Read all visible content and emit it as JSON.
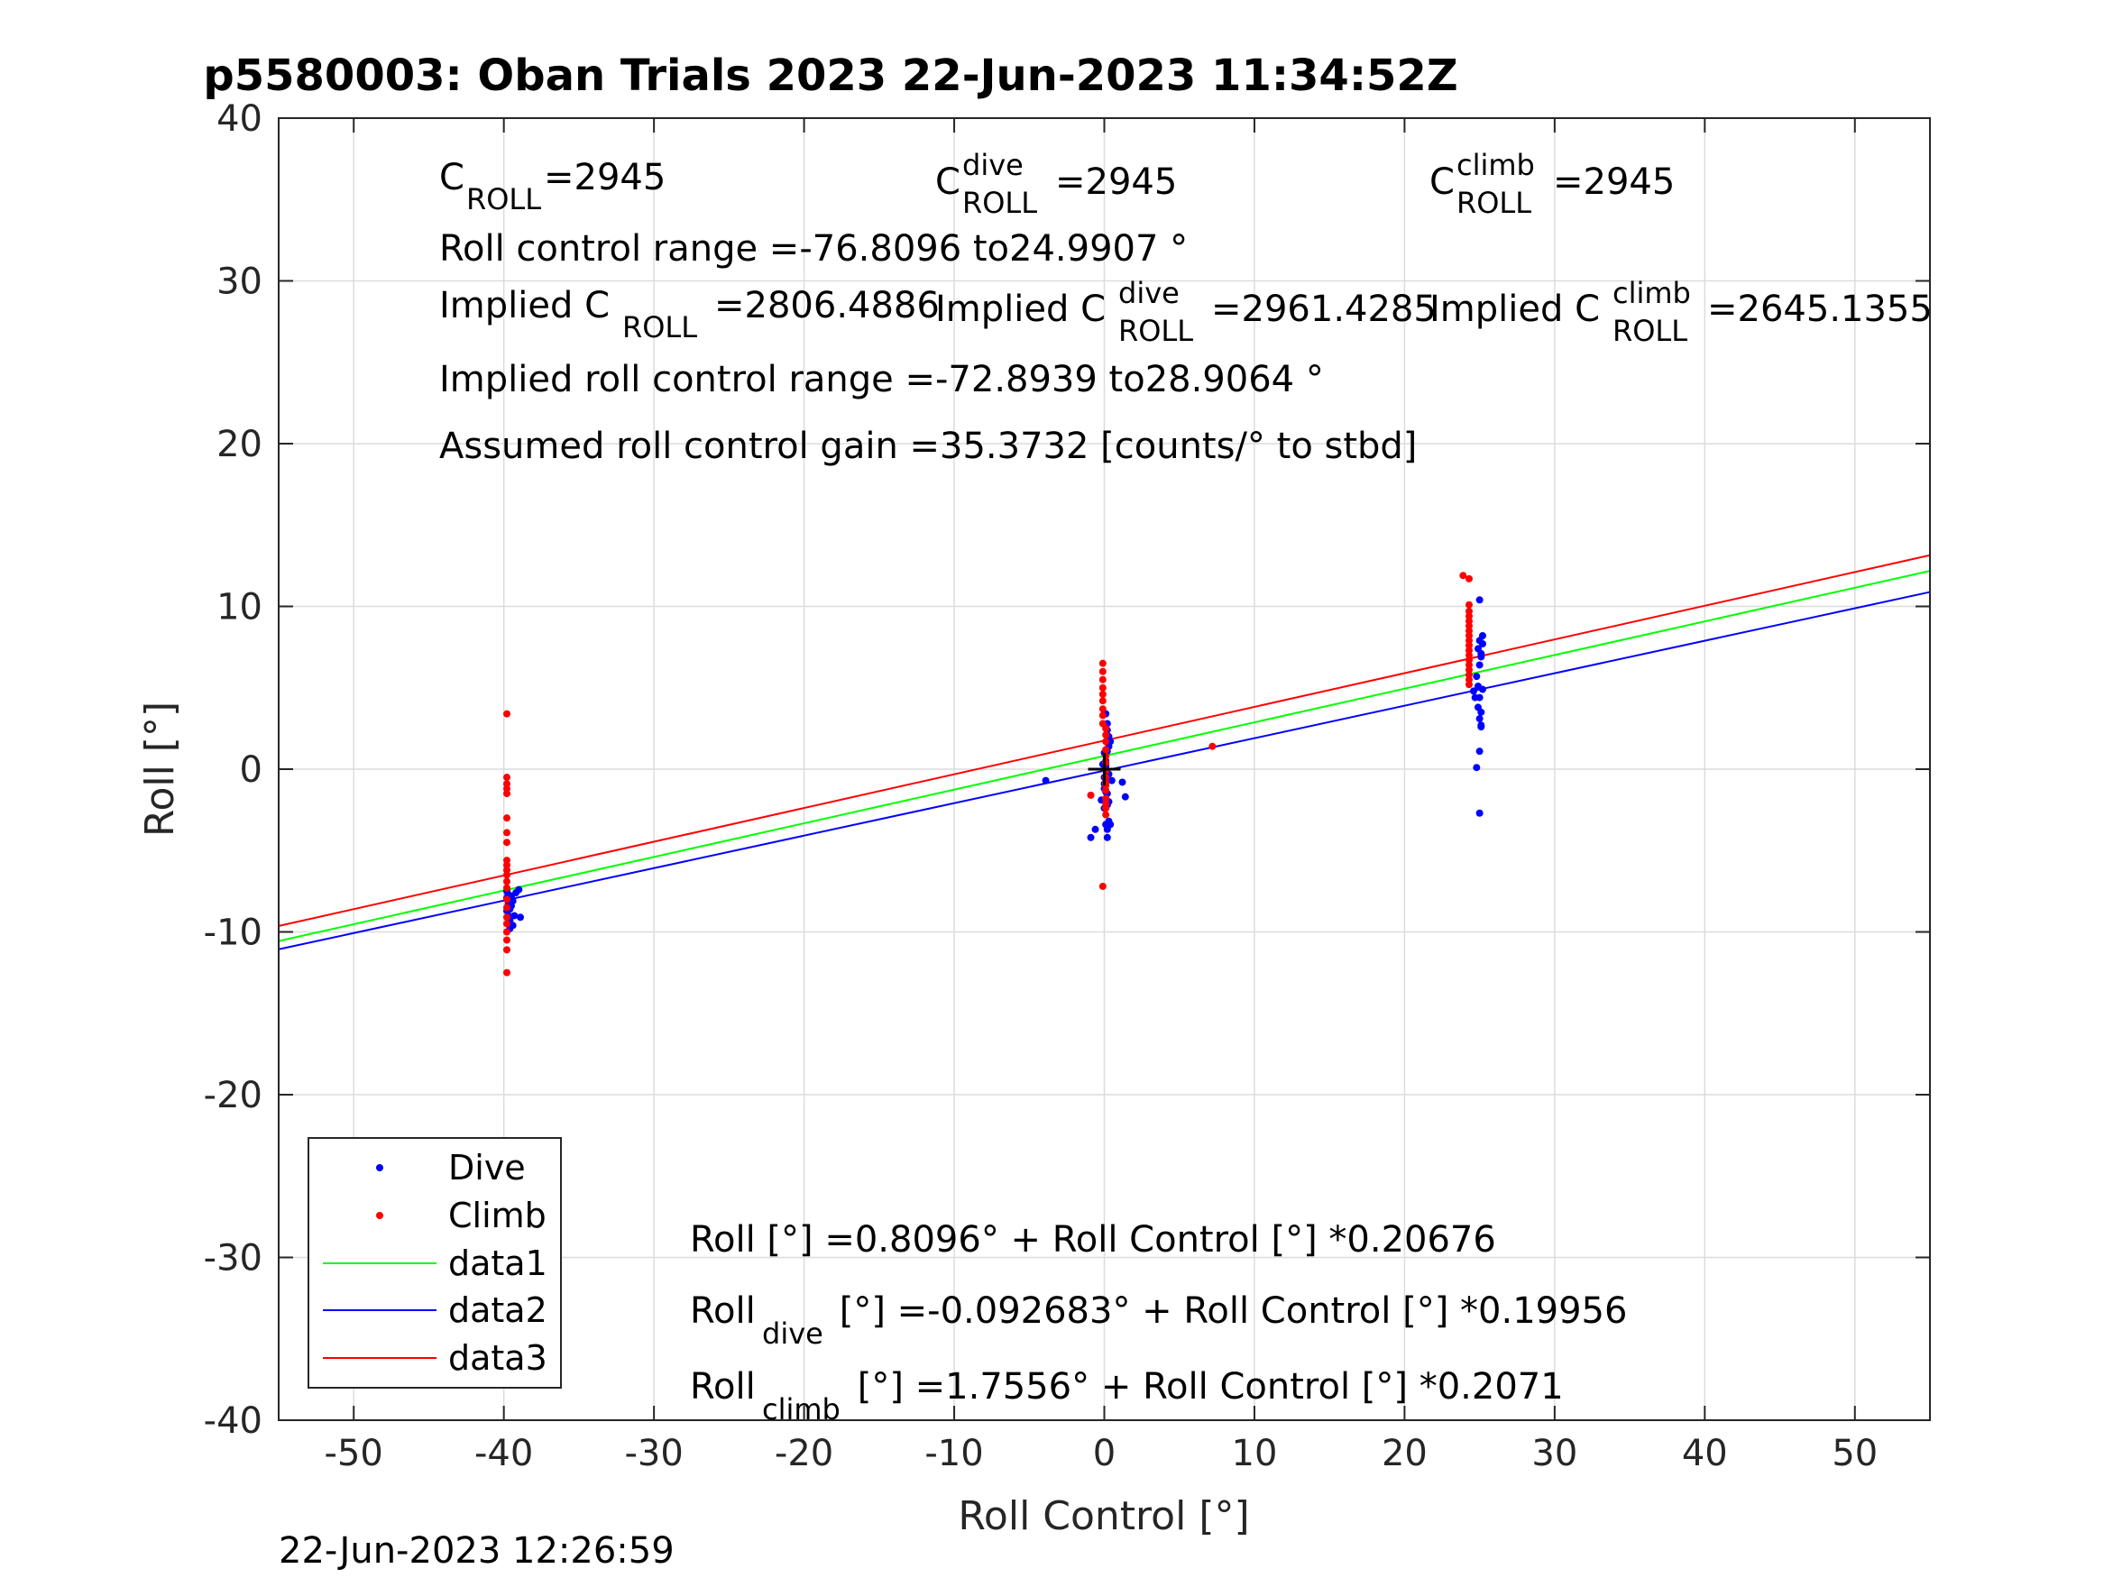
{
  "chart_data": {
    "type": "scatter",
    "title": "p5580003: Oban Trials 2023 22-Jun-2023 11:34:52Z",
    "xlabel": "Roll Control [°]",
    "ylabel": "Roll [°]",
    "xlim": [
      -55,
      55
    ],
    "ylim": [
      -40,
      40
    ],
    "xticks": [
      -50,
      -40,
      -30,
      -20,
      -10,
      0,
      10,
      20,
      30,
      40,
      50
    ],
    "yticks": [
      -40,
      -30,
      -20,
      -10,
      0,
      10,
      20,
      30,
      40
    ],
    "grid": true,
    "legend_location": "bottom-left",
    "timestamp": "22-Jun-2023 12:26:59",
    "colors": {
      "dive": "#0000ff",
      "climb": "#ff0000",
      "data1": "#00ff00",
      "data2": "#0000ff",
      "data3": "#ff0000"
    },
    "series": [
      {
        "name": "Dive",
        "kind": "points",
        "color": "#0000ff",
        "x": [
          -39.8,
          -39.8,
          -39.7,
          -39.6,
          -39.5,
          -39.7,
          -39.6,
          -39.4,
          -39.3,
          -39.8,
          -39.5,
          -39.2,
          -39.0,
          -38.9,
          -39.6,
          -39.4,
          -39.7,
          -39.5,
          -3.9,
          -0.6,
          -0.9,
          0.1,
          0.3,
          0.2,
          -0.1,
          0.0,
          0.4,
          0.2,
          0.1,
          0.3,
          0.5,
          0.0,
          -0.2,
          0.2,
          0.3,
          0.1,
          0.2,
          0.0,
          0.1,
          0.4,
          0.2,
          0.3,
          0.2,
          0.0,
          1.2,
          1.4,
          0.1,
          0.2,
          0.3,
          0.0,
          24.6,
          24.8,
          25.0,
          25.1,
          25.2,
          24.9,
          25.0,
          25.1,
          24.7,
          25.0,
          25.2,
          24.9,
          25.1,
          25.0,
          24.8,
          25.0,
          25.1,
          24.9,
          25.2,
          25.0,
          25.1,
          25.0
        ],
        "y": [
          -7.5,
          -7.9,
          -8.3,
          -8.6,
          -8.0,
          -9.0,
          -9.3,
          -9.6,
          -9.0,
          -8.7,
          -7.8,
          -7.6,
          -7.4,
          -9.1,
          -9.8,
          -8.1,
          -7.7,
          -8.4,
          -0.7,
          -3.7,
          -4.2,
          -3.4,
          -3.2,
          -4.2,
          0.3,
          1.0,
          1.7,
          2.4,
          3.4,
          2.0,
          -0.7,
          -1.2,
          -1.9,
          -2.2,
          -0.3,
          0.2,
          2.8,
          -0.9,
          -1.4,
          -3.4,
          -3.7,
          -2.0,
          -1.5,
          -0.5,
          -0.8,
          -1.7,
          0.5,
          1.1,
          1.4,
          -2.4,
          4.8,
          5.7,
          6.4,
          7.1,
          8.2,
          3.8,
          3.1,
          2.6,
          4.4,
          10.4,
          7.7,
          5.1,
          6.9,
          1.1,
          0.1,
          -2.7,
          3.5,
          7.4,
          4.9,
          7.9,
          2.7,
          4.4
        ]
      },
      {
        "name": "Climb",
        "kind": "points",
        "color": "#ff0000",
        "x": [
          -39.8,
          -39.8,
          -39.8,
          -39.8,
          -39.8,
          -39.8,
          -39.8,
          -39.8,
          -39.8,
          -39.8,
          -39.8,
          -39.8,
          -39.8,
          -39.8,
          -39.8,
          -39.8,
          -39.8,
          -39.8,
          -39.8,
          -39.8,
          -39.8,
          -39.8,
          -0.9,
          -0.1,
          -0.1,
          -0.1,
          -0.1,
          -0.1,
          -0.1,
          -0.1,
          -0.1,
          -0.1,
          0.1,
          0.1,
          0.1,
          0.1,
          0.1,
          0.1,
          0.1,
          0.1,
          0.1,
          0.1,
          -0.1,
          0.1,
          0.1,
          0.1,
          0.1,
          0.1,
          7.2,
          23.9,
          24.3,
          24.3,
          24.3,
          24.3,
          24.3,
          24.3,
          24.3,
          24.3,
          24.3,
          24.3,
          24.3,
          24.3,
          24.3,
          24.3,
          24.3,
          24.3,
          24.3,
          24.3
        ],
        "y": [
          3.4,
          -0.5,
          -0.9,
          -1.2,
          -1.5,
          -3.0,
          -3.9,
          -4.5,
          -5.6,
          -5.9,
          -6.2,
          -6.5,
          -6.9,
          -7.3,
          -8.0,
          -8.5,
          -9.1,
          -9.5,
          -10.0,
          -10.5,
          -11.1,
          -12.5,
          -1.6,
          6.5,
          6.0,
          5.5,
          5.0,
          4.6,
          4.2,
          3.7,
          3.3,
          2.8,
          2.5,
          2.1,
          1.7,
          1.2,
          0.8,
          0.4,
          -0.1,
          -0.5,
          -2.4,
          -2.8,
          -7.2,
          -0.8,
          -1.0,
          -1.3,
          -1.8,
          -2.1,
          1.4,
          11.9,
          11.7,
          10.1,
          9.7,
          9.4,
          9.1,
          8.8,
          8.5,
          8.2,
          7.9,
          7.6,
          7.3,
          7.0,
          6.7,
          6.4,
          6.1,
          5.8,
          5.5,
          5.2
        ]
      },
      {
        "name": "data1",
        "kind": "line",
        "color": "#00ff00",
        "intercept": 0.8096,
        "slope": 0.20676
      },
      {
        "name": "data2",
        "kind": "line",
        "color": "#0000ff",
        "intercept": -0.092683,
        "slope": 0.19956
      },
      {
        "name": "data3",
        "kind": "line",
        "color": "#ff0000",
        "intercept": 1.7556,
        "slope": 0.2071
      }
    ],
    "center_marker": {
      "x": 0,
      "y": 0
    },
    "annotations": {
      "c_roll": {
        "base": "C",
        "sub": "ROLL",
        "value": "=2945"
      },
      "c_roll_dive": {
        "base": "C",
        "sup": "dive",
        "sub": "ROLL",
        "value": "=2945"
      },
      "c_roll_climb": {
        "base": "C",
        "sup": "climb",
        "sub": "ROLL",
        "value": "=2945"
      },
      "range": "Roll control range =-76.8096 to24.9907 °",
      "implied_c_roll": {
        "prefix": "Implied C",
        "sub": "ROLL",
        "value": "=2806.4886"
      },
      "implied_c_roll_dive": {
        "prefix": "Implied C",
        "sup": "dive",
        "sub": "ROLL",
        "value": "=2961.4285"
      },
      "implied_c_roll_climb": {
        "prefix": "Implied C",
        "sup": "climb",
        "sub": "ROLL",
        "value": "=2645.1355"
      },
      "implied_range": "Implied roll control range =-72.8939 to28.9064 °",
      "gain": "Assumed roll control gain =35.3732 [counts/° to stbd]",
      "fit_all": "Roll [°] =0.8096° + Roll Control [°] *0.20676",
      "fit_dive": {
        "base": "Roll",
        "sub": "dive",
        "rest": " [°] =-0.092683° + Roll Control [°] *0.19956"
      },
      "fit_climb": {
        "base": "Roll",
        "sub": "climb",
        "rest": " [°] =1.7556° + Roll Control [°] *0.2071"
      }
    }
  }
}
